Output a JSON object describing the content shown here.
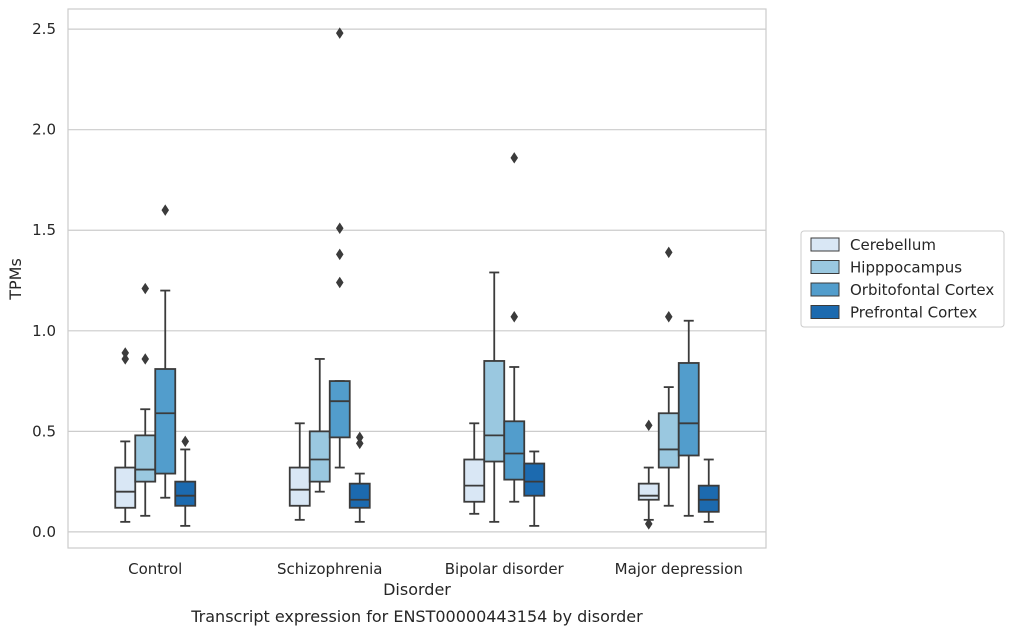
{
  "chart_data": {
    "type": "box",
    "title": "",
    "caption": "Transcript expression for ENST00000443154 by disorder",
    "xlabel": "Disorder",
    "ylabel": "TPMs",
    "ylim": [
      -0.08,
      2.6
    ],
    "yticks": [
      0.0,
      0.5,
      1.0,
      1.5,
      2.0,
      2.5
    ],
    "ytick_labels": [
      "0.0",
      "0.5",
      "1.0",
      "1.5",
      "2.0",
      "2.5"
    ],
    "grid": true,
    "legend_position": "right",
    "categories": [
      "Control",
      "Schizophrenia",
      "Bipolar disorder",
      "Major depression"
    ],
    "series": [
      {
        "name": "Cerebellum",
        "color": "#d9e7f5",
        "boxes": [
          {
            "whisker_low": 0.05,
            "q1": 0.12,
            "median": 0.2,
            "q3": 0.32,
            "whisker_high": 0.45,
            "outliers": [
              0.86,
              0.89
            ]
          },
          {
            "whisker_low": 0.06,
            "q1": 0.13,
            "median": 0.21,
            "q3": 0.32,
            "whisker_high": 0.54,
            "outliers": []
          },
          {
            "whisker_low": 0.09,
            "q1": 0.15,
            "median": 0.23,
            "q3": 0.36,
            "whisker_high": 0.54,
            "outliers": []
          },
          {
            "whisker_low": 0.06,
            "q1": 0.16,
            "median": 0.18,
            "q3": 0.24,
            "whisker_high": 0.32,
            "outliers": [
              0.53,
              0.04
            ]
          }
        ]
      },
      {
        "name": "Hipppocampus",
        "color": "#9ac8e0",
        "boxes": [
          {
            "whisker_low": 0.08,
            "q1": 0.25,
            "median": 0.31,
            "q3": 0.48,
            "whisker_high": 0.61,
            "outliers": [
              0.86,
              1.21
            ]
          },
          {
            "whisker_low": 0.2,
            "q1": 0.25,
            "median": 0.36,
            "q3": 0.5,
            "whisker_high": 0.86,
            "outliers": []
          },
          {
            "whisker_low": 0.05,
            "q1": 0.35,
            "median": 0.48,
            "q3": 0.85,
            "whisker_high": 1.29,
            "outliers": []
          },
          {
            "whisker_low": 0.13,
            "q1": 0.32,
            "median": 0.41,
            "q3": 0.59,
            "whisker_high": 0.72,
            "outliers": [
              1.07,
              1.39
            ]
          }
        ]
      },
      {
        "name": "Orbitofontal Cortex",
        "color": "#529dcc",
        "boxes": [
          {
            "whisker_low": 0.17,
            "q1": 0.29,
            "median": 0.59,
            "q3": 0.81,
            "whisker_high": 1.2,
            "outliers": [
              1.6
            ]
          },
          {
            "whisker_low": 0.32,
            "q1": 0.47,
            "median": 0.65,
            "q3": 0.75,
            "whisker_high": 0.75,
            "outliers": [
              1.24,
              1.38,
              1.51,
              2.48
            ]
          },
          {
            "whisker_low": 0.15,
            "q1": 0.26,
            "median": 0.39,
            "q3": 0.55,
            "whisker_high": 0.82,
            "outliers": [
              1.07,
              1.86
            ]
          },
          {
            "whisker_low": 0.08,
            "q1": 0.38,
            "median": 0.54,
            "q3": 0.84,
            "whisker_high": 1.05,
            "outliers": []
          }
        ]
      },
      {
        "name": "Prefrontal Cortex",
        "color": "#1c6aaf",
        "boxes": [
          {
            "whisker_low": 0.03,
            "q1": 0.13,
            "median": 0.18,
            "q3": 0.25,
            "whisker_high": 0.41,
            "outliers": [
              0.45
            ]
          },
          {
            "whisker_low": 0.05,
            "q1": 0.12,
            "median": 0.16,
            "q3": 0.24,
            "whisker_high": 0.29,
            "outliers": [
              0.44,
              0.47
            ]
          },
          {
            "whisker_low": 0.03,
            "q1": 0.18,
            "median": 0.25,
            "q3": 0.34,
            "whisker_high": 0.4,
            "outliers": []
          },
          {
            "whisker_low": 0.05,
            "q1": 0.1,
            "median": 0.16,
            "q3": 0.23,
            "whisker_high": 0.36,
            "outliers": []
          }
        ]
      }
    ]
  }
}
